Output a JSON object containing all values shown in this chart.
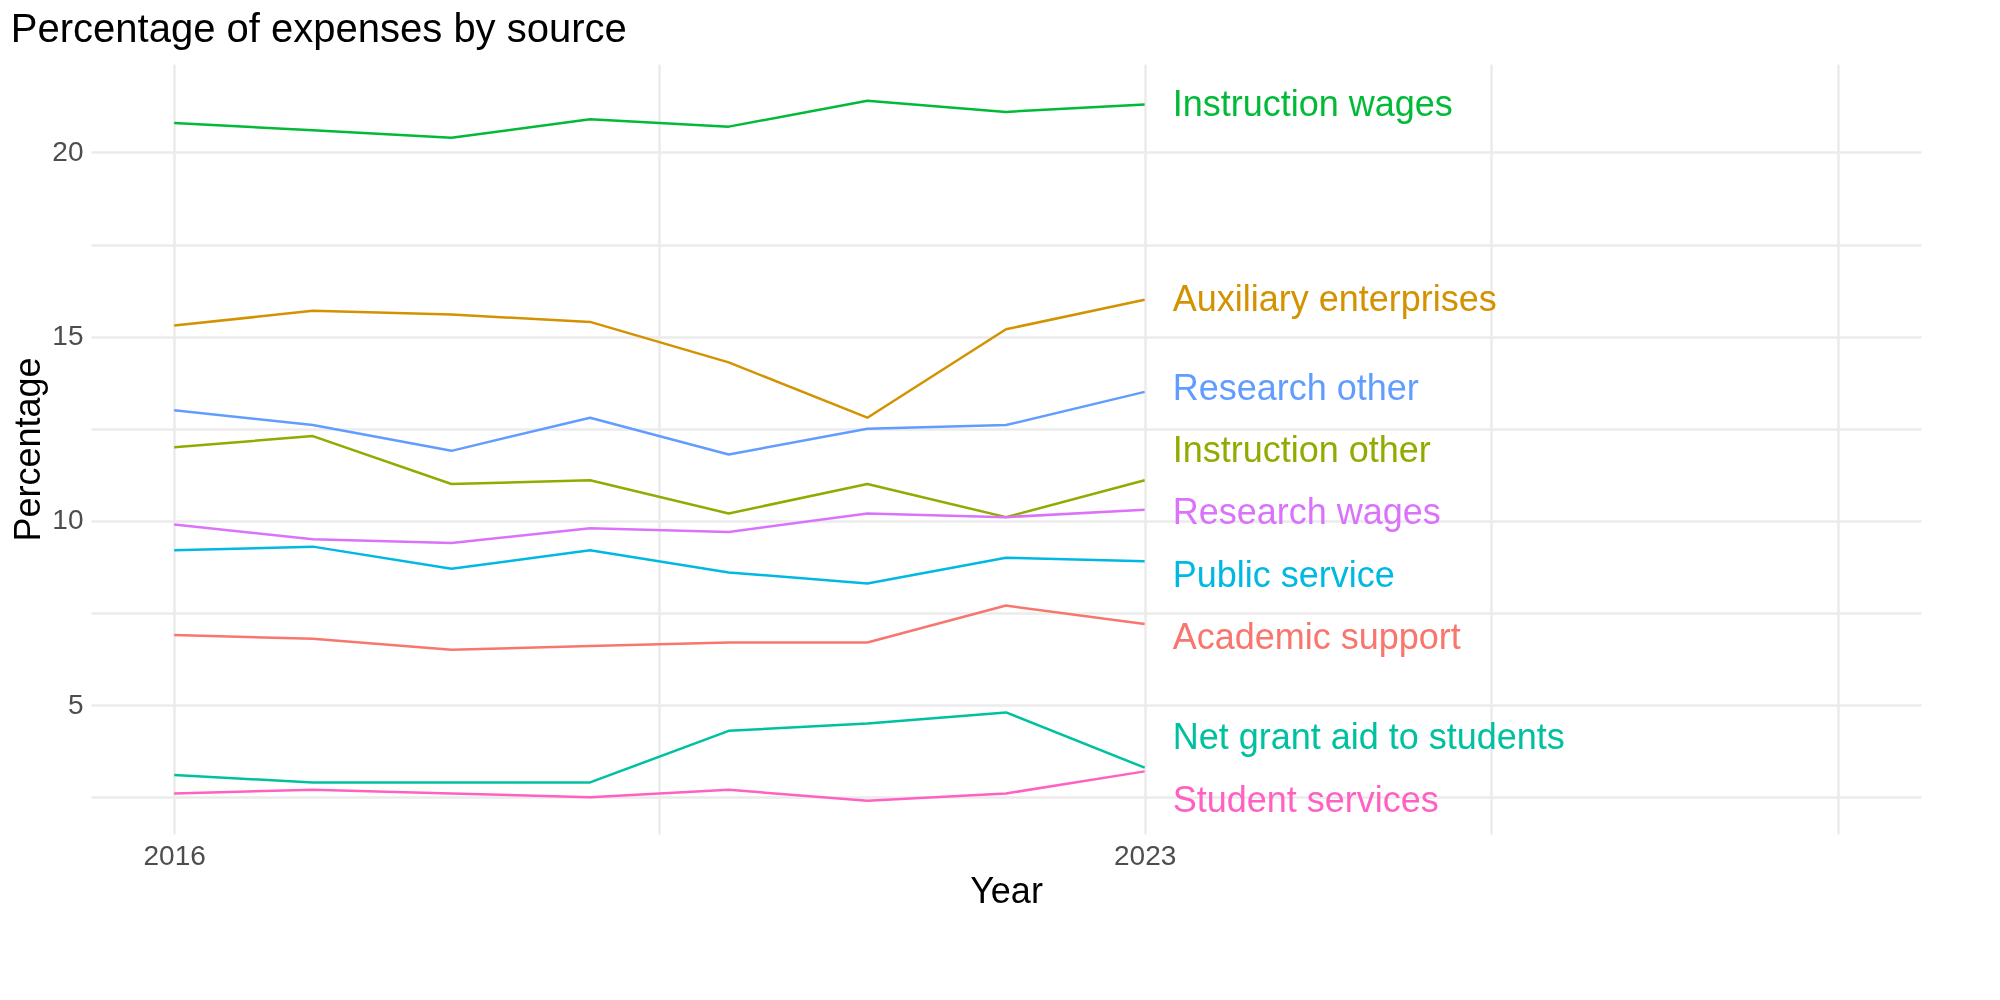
{
  "chart_data": {
    "type": "line",
    "title": "Percentage of expenses by source",
    "xlabel": "Year",
    "ylabel": "Percentage",
    "x": [
      2016,
      2017,
      2018,
      2019,
      2020,
      2021,
      2022,
      2023
    ],
    "xlim": [
      2015.4,
      2028.6
    ],
    "xticks": [
      2016,
      {
        "value": 2019.5,
        "label": null
      },
      2023,
      {
        "value": 2025.5,
        "label": null
      },
      {
        "value": 2028,
        "label": null
      }
    ],
    "ylim": [
      1.5,
      22.4
    ],
    "yticks": [
      {
        "value": 2.5,
        "label": null
      },
      5,
      {
        "value": 7.5,
        "label": null
      },
      10,
      {
        "value": 12.5,
        "label": null
      },
      15,
      {
        "value": 17.5,
        "label": null
      },
      20
    ],
    "grid": true,
    "series": [
      {
        "name": "Instruction wages",
        "color": "#00ba38",
        "values": [
          20.8,
          20.6,
          20.4,
          20.9,
          20.7,
          21.4,
          21.1,
          21.3
        ]
      },
      {
        "name": "Auxiliary enterprises",
        "color": "#d39200",
        "values": [
          15.3,
          15.7,
          15.6,
          15.4,
          14.3,
          12.8,
          15.2,
          16.0
        ]
      },
      {
        "name": "Research other",
        "color": "#619cff",
        "values": [
          13.0,
          12.6,
          11.9,
          12.8,
          11.8,
          12.5,
          12.6,
          13.5
        ]
      },
      {
        "name": "Instruction other",
        "color": "#93aa00",
        "values": [
          12.0,
          12.3,
          11.0,
          11.1,
          10.2,
          11.0,
          10.1,
          11.1
        ]
      },
      {
        "name": "Research wages",
        "color": "#db72fb",
        "values": [
          9.9,
          9.5,
          9.4,
          9.8,
          9.7,
          10.2,
          10.1,
          10.3
        ]
      },
      {
        "name": "Public service",
        "color": "#00b9e3",
        "values": [
          9.2,
          9.3,
          8.7,
          9.2,
          8.6,
          8.3,
          9.0,
          8.9
        ]
      },
      {
        "name": "Academic support",
        "color": "#f8766d",
        "values": [
          6.9,
          6.8,
          6.5,
          6.6,
          6.7,
          6.7,
          7.7,
          7.2
        ]
      },
      {
        "name": "Net grant aid to students",
        "color": "#00c19f",
        "values": [
          3.1,
          2.9,
          2.9,
          2.9,
          4.3,
          4.5,
          4.8,
          3.3
        ]
      },
      {
        "name": "Student services",
        "color": "#ff61c3",
        "values": [
          2.6,
          2.7,
          2.6,
          2.5,
          2.7,
          2.4,
          2.6,
          3.2
        ]
      }
    ]
  }
}
